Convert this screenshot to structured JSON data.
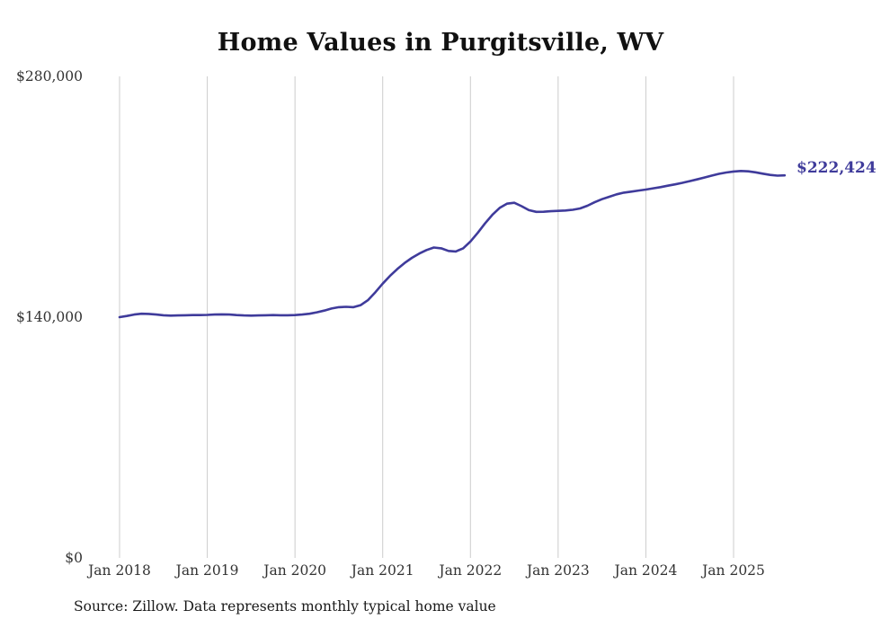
{
  "title": "Home Values in Purgitsville, WV",
  "source_note": "Source: Zillow. Data represents monthly typical home value",
  "end_label": "$222,424",
  "colors": {
    "line": "#3f3b9b",
    "grid": "#cccccc",
    "axis_text": "#333333",
    "title_text": "#111111"
  },
  "chart_data": {
    "type": "line",
    "title": "Home Values in Purgitsville, WV",
    "x_start": "Jan 2018",
    "x_interval": "monthly",
    "x_tick_labels": [
      "Jan 2018",
      "Jan 2019",
      "Jan 2020",
      "Jan 2021",
      "Jan 2022",
      "Jan 2023",
      "Jan 2024",
      "Jan 2025"
    ],
    "y_ticks": [
      0,
      140000,
      280000
    ],
    "y_tick_labels": [
      "$0",
      "$140,000",
      "$280,000"
    ],
    "ylim": [
      0,
      280000
    ],
    "grid": "vertical-only",
    "legend": "none",
    "series": [
      {
        "name": "Typical home value",
        "values": [
          140000,
          140700,
          141500,
          142000,
          141900,
          141500,
          141100,
          140900,
          141000,
          141100,
          141200,
          141200,
          141300,
          141500,
          141600,
          141500,
          141200,
          141000,
          140900,
          141000,
          141100,
          141200,
          141100,
          141100,
          141200,
          141500,
          142000,
          142800,
          143800,
          145000,
          145800,
          146000,
          145800,
          147000,
          150000,
          154500,
          159500,
          164000,
          168000,
          171500,
          174500,
          177000,
          179000,
          180500,
          180000,
          178500,
          178200,
          180000,
          184000,
          189000,
          194500,
          199500,
          203500,
          206000,
          206500,
          204500,
          202200,
          201200,
          201300,
          201600,
          201800,
          202000,
          202400,
          203200,
          204800,
          206800,
          208600,
          210000,
          211400,
          212400,
          213000,
          213600,
          214200,
          214900,
          215600,
          216400,
          217200,
          218100,
          219100,
          220100,
          221200,
          222300,
          223300,
          224100,
          224700,
          225000,
          224800,
          224200,
          223400,
          222700,
          222300,
          222424
        ]
      }
    ],
    "final_value": 222424,
    "final_value_label": "$222,424"
  }
}
